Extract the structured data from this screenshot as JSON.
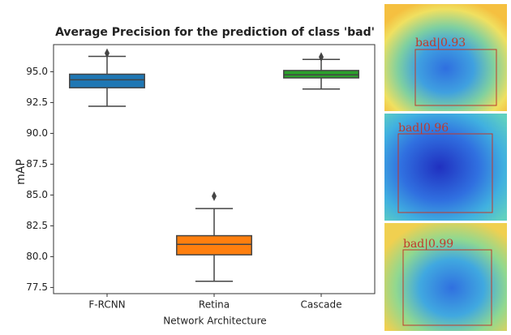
{
  "chart_data": {
    "type": "box",
    "title": "Average Precision for the prediction of class 'bad'",
    "x_label": "Network Architecture",
    "y_label": "mAP",
    "categories": [
      "F-RCNN",
      "Retina",
      "Cascade"
    ],
    "boxes": [
      {
        "color": "#1f77b4",
        "whisker_low": 92.2,
        "q1": 93.7,
        "median": 94.35,
        "q3": 94.8,
        "whisker_high": 96.25,
        "outliers": [
          96.5
        ]
      },
      {
        "color": "#ff7f0e",
        "whisker_low": 78.0,
        "q1": 80.15,
        "median": 81.0,
        "q3": 81.7,
        "whisker_high": 83.9,
        "outliers": [
          84.9
        ]
      },
      {
        "color": "#2ca02c",
        "whisker_low": 93.6,
        "q1": 94.5,
        "median": 94.75,
        "q3": 95.1,
        "whisker_high": 96.0,
        "outliers": [
          96.2
        ]
      }
    ],
    "ylim": [
      77.0,
      97.2
    ],
    "yticks": [
      {
        "value": 77.5,
        "label": "77.5"
      },
      {
        "value": 80,
        "label": "80.0"
      },
      {
        "value": 82.5,
        "label": "82.5"
      },
      {
        "value": 85,
        "label": "85.0"
      },
      {
        "value": 87.5,
        "label": "87.5"
      },
      {
        "value": 90,
        "label": "90.0"
      },
      {
        "value": 92.5,
        "label": "92.5"
      },
      {
        "value": 95,
        "label": "95.0"
      }
    ]
  },
  "panels": [
    {
      "label": "bad|0.93"
    },
    {
      "label": "bad|0.96"
    },
    {
      "label": "bad|0.99"
    }
  ]
}
